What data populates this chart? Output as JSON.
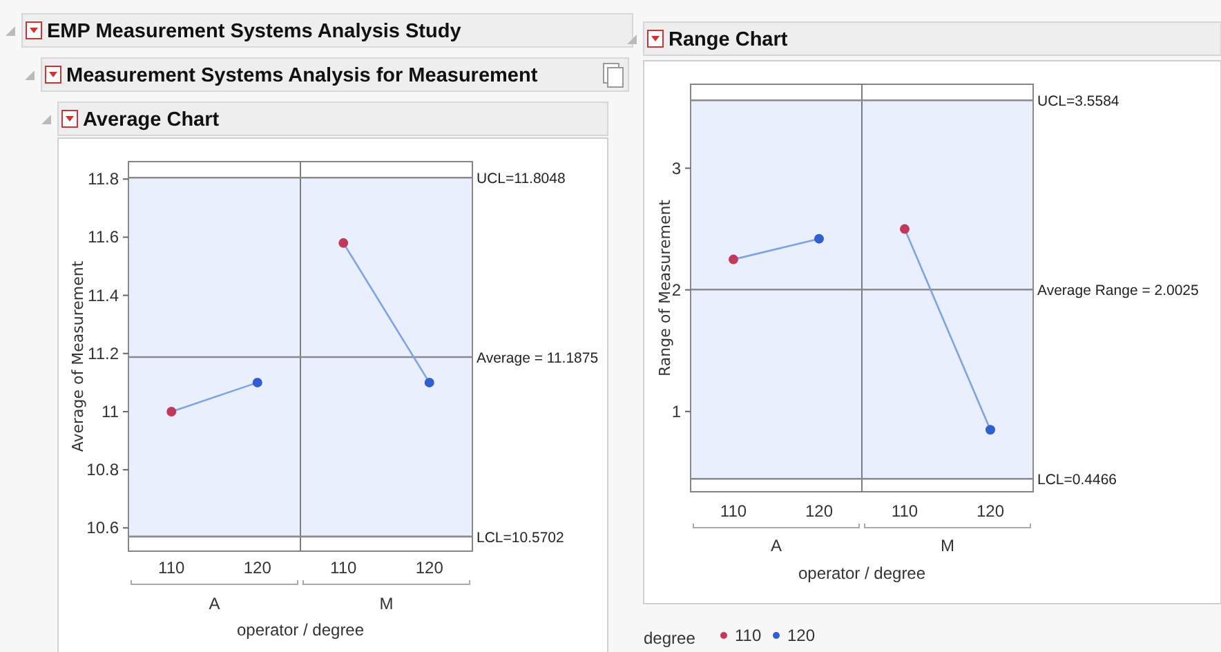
{
  "chart_data": [
    {
      "type": "other",
      "title": "EMP Measurement Systems Analysis Study",
      "subtitle": "Measurement Systems Analysis for Measurement"
    },
    {
      "type": "scatter",
      "title": "Average Chart",
      "xlabel": "operator / degree",
      "ylabel": "Average of Measurement",
      "categories": [
        "110",
        "120",
        "110",
        "120"
      ],
      "ylim": [
        10.52,
        11.86
      ],
      "yticks": [
        10.6,
        10.8,
        11,
        11.2,
        11.4,
        11.6,
        11.8
      ],
      "series": [
        {
          "type": "line",
          "color": "#7fa3e0",
          "marker": "none",
          "values": [
            11.0,
            11.1,
            null,
            null
          ]
        },
        {
          "type": "line",
          "color": "#7fa3e0",
          "marker": "none",
          "values": [
            null,
            null,
            11.58,
            11.1
          ]
        },
        {
          "color": "#c0395a",
          "marker": "circle",
          "values": [
            11.0,
            null,
            11.58,
            null
          ]
        },
        {
          "color": "#2f5fd0",
          "marker": "circle",
          "values": [
            null,
            11.1,
            null,
            11.1
          ]
        }
      ],
      "ref_lines": [
        {
          "axis": "y",
          "value": 11.8048,
          "label": "UCL=11.8048",
          "color": "#8a8a8a"
        },
        {
          "axis": "y",
          "value": 11.1875,
          "label": "Average = 11.1875",
          "color": "#8a8a8a"
        },
        {
          "axis": "y",
          "value": 10.5702,
          "label": "LCL=10.5702",
          "color": "#8a8a8a"
        }
      ],
      "bands": [
        {
          "axis": "y",
          "from": 10.5702,
          "to": 11.8048,
          "color": "#e9effd"
        }
      ],
      "annotations": [
        "A",
        "M"
      ]
    },
    {
      "type": "scatter",
      "title": "Range Chart",
      "xlabel": "operator / degree",
      "ylabel": "Range of Measurement",
      "categories": [
        "110",
        "120",
        "110",
        "120"
      ],
      "ylim": [
        0.34,
        3.69
      ],
      "yticks": [
        1,
        2,
        3
      ],
      "series": [
        {
          "type": "line",
          "color": "#7fa3e0",
          "marker": "none",
          "values": [
            2.25,
            2.42,
            null,
            null
          ]
        },
        {
          "type": "line",
          "color": "#7fa3e0",
          "marker": "none",
          "values": [
            null,
            null,
            2.5,
            0.85
          ]
        },
        {
          "name": "110",
          "color": "#c0395a",
          "marker": "circle",
          "values": [
            2.25,
            null,
            2.5,
            null
          ]
        },
        {
          "name": "120",
          "color": "#2f5fd0",
          "marker": "circle",
          "values": [
            null,
            2.42,
            null,
            0.85
          ]
        }
      ],
      "ref_lines": [
        {
          "axis": "y",
          "value": 3.5584,
          "label": "UCL=3.5584",
          "color": "#8a8a8a"
        },
        {
          "axis": "y",
          "value": 2.0025,
          "label": "Average Range = 2.0025",
          "color": "#8a8a8a"
        },
        {
          "axis": "y",
          "value": 0.4466,
          "label": "LCL=0.4466",
          "color": "#8a8a8a"
        }
      ],
      "bands": [
        {
          "axis": "y",
          "from": 0.4466,
          "to": 3.5584,
          "color": "#e9effd"
        }
      ],
      "annotations": [
        "A",
        "M"
      ],
      "legend": "bottom",
      "legend_title": "degree"
    }
  ]
}
